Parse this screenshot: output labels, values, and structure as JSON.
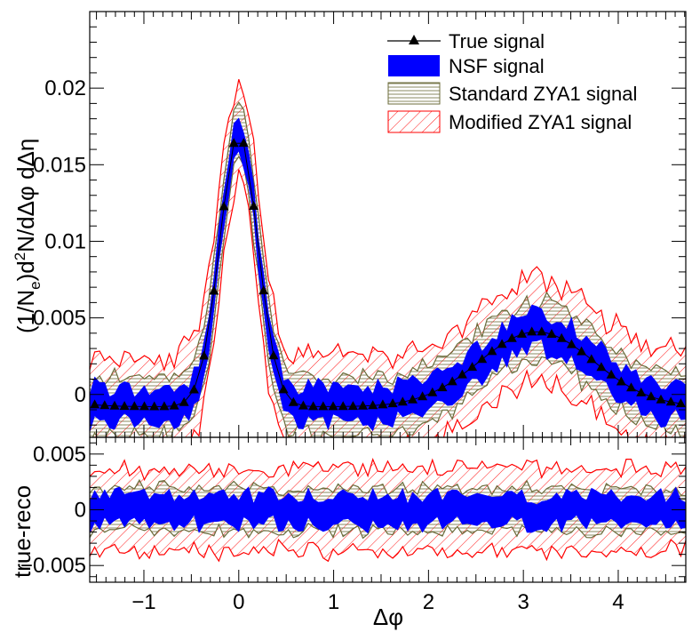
{
  "chart_data": [
    {
      "type": "line",
      "panel": "top",
      "title": "",
      "xlabel": "",
      "ylabel": "(1/N_e)d²N/dΔφ dΔη",
      "ylabel_parts": {
        "pre": "(1/N",
        "sub": "e",
        "mid": ")d",
        "sup": "2",
        "post": "N/dΔφ dΔη"
      },
      "xlim": [
        -1.571,
        4.712
      ],
      "ylim": [
        -0.0028,
        0.025
      ],
      "xticks": [
        -1,
        0,
        1,
        2,
        3,
        4
      ],
      "yticks": [
        0,
        0.005,
        0.01,
        0.015,
        0.02
      ],
      "ytick_labels": [
        "0",
        "0.005",
        "0.01",
        "0.015",
        "0.02"
      ],
      "legend_position": "top-right",
      "legend": [
        {
          "label": "True signal",
          "style": "marker-line"
        },
        {
          "label": "NSF signal",
          "style": "fill-blue"
        },
        {
          "label": "Standard ZYA1 signal",
          "style": "hatch-horizontal"
        },
        {
          "label": "Modified ZYA1 signal",
          "style": "hatch-diagonal"
        }
      ],
      "model": {
        "near_peak": {
          "center": 0.0,
          "amplitude": 0.0178,
          "sigma": 0.2
        },
        "away_peak": {
          "center": 3.14,
          "amplitude": 0.0049,
          "sigma": 0.6
        },
        "baseline": -0.0008,
        "n_points": 60
      },
      "series": [
        {
          "name": "True signal",
          "color": "#000000"
        },
        {
          "name": "NSF signal",
          "color": "#0000ff",
          "half_width": 0.0013
        },
        {
          "name": "Standard ZYA1 signal",
          "color": "#6b6b3a",
          "half_width": 0.0022
        },
        {
          "name": "Modified ZYA1 signal",
          "color": "#ff0000",
          "half_width": 0.0038
        }
      ]
    },
    {
      "type": "line",
      "panel": "bottom",
      "xlabel": "Δφ",
      "ylabel": "true-reco",
      "xlim": [
        -1.571,
        4.712
      ],
      "ylim": [
        -0.0065,
        0.0065
      ],
      "xticks": [
        -1,
        0,
        1,
        2,
        3,
        4
      ],
      "xtick_labels": [
        "−1",
        "0",
        "1",
        "2",
        "3",
        "4"
      ],
      "yticks": [
        -0.005,
        0,
        0.005
      ],
      "ytick_labels": [
        "−0.005",
        "0",
        "0.005"
      ],
      "series": [
        {
          "name": "NSF signal",
          "color": "#0000ff",
          "half_width": 0.0015
        },
        {
          "name": "Standard ZYA1 signal",
          "color": "#6b6b3a",
          "half_width": 0.0022
        },
        {
          "name": "Modified ZYA1 signal",
          "color": "#ff0000",
          "half_width": 0.0042
        }
      ]
    }
  ]
}
